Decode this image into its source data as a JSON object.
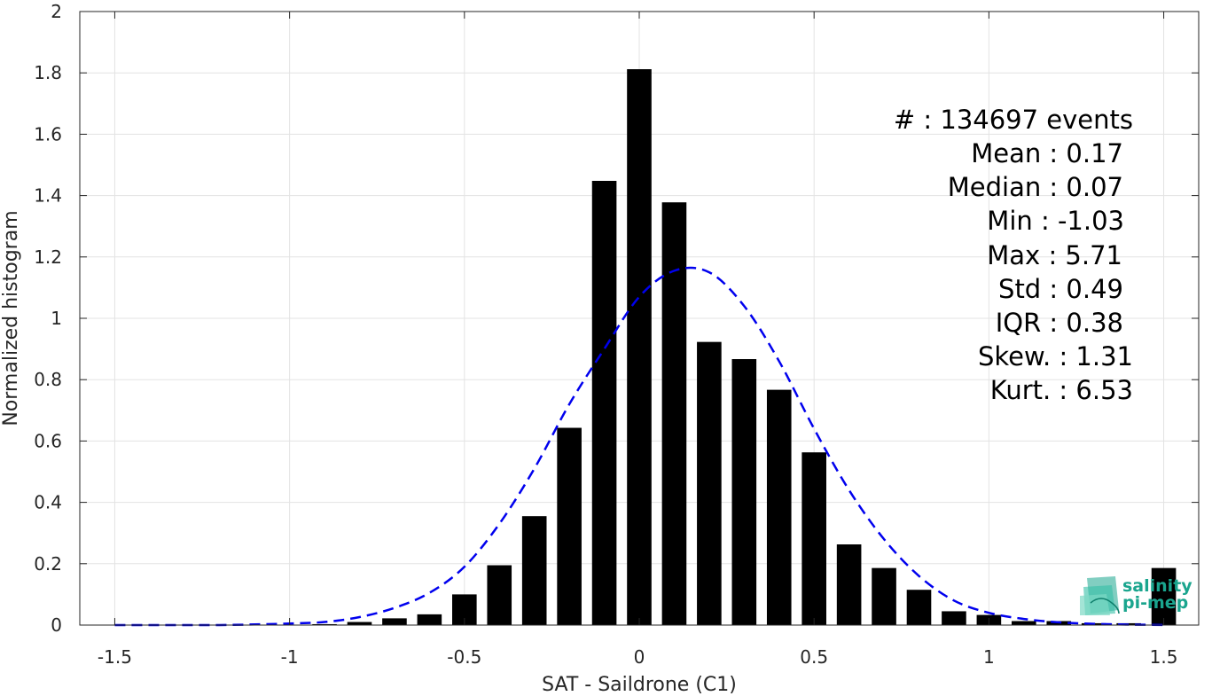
{
  "chart_data": {
    "type": "bar",
    "xlabel": "SAT - Saildrone (C1)",
    "ylabel": "Normalized histogram",
    "xlim": [
      -1.6,
      1.6
    ],
    "ylim": [
      0,
      2
    ],
    "xticks": [
      -1.5,
      -1,
      -0.5,
      0,
      0.5,
      1,
      1.5
    ],
    "xtick_labels": [
      "-1.5",
      "-1",
      "-0.5",
      "0",
      "0.5",
      "1",
      "1.5"
    ],
    "yticks": [
      0,
      0.2,
      0.4,
      0.6,
      0.8,
      1,
      1.2,
      1.4,
      1.6,
      1.8,
      2
    ],
    "ytick_labels": [
      "0",
      "0.2",
      "0.4",
      "0.6",
      "0.8",
      "1",
      "1.2",
      "1.4",
      "1.6",
      "1.8",
      "2"
    ],
    "grid": true,
    "bar_width": 0.07,
    "bars": {
      "x": [
        -1.5,
        -1.4,
        -1.3,
        -1.2,
        -1.1,
        -1.0,
        -0.9,
        -0.8,
        -0.7,
        -0.6,
        -0.5,
        -0.4,
        -0.3,
        -0.2,
        -0.1,
        0.0,
        0.1,
        0.2,
        0.3,
        0.4,
        0.5,
        0.6,
        0.7,
        0.8,
        0.9,
        1.0,
        1.1,
        1.2,
        1.3,
        1.4,
        1.5
      ],
      "values": [
        0,
        0,
        0,
        0,
        0,
        0,
        0.003,
        0.01,
        0.022,
        0.035,
        0.1,
        0.195,
        0.355,
        0.643,
        1.448,
        1.812,
        1.378,
        0.923,
        0.867,
        0.767,
        0.563,
        0.263,
        0.186,
        0.115,
        0.045,
        0.033,
        0.013,
        0.013,
        0.006,
        0.006,
        0.186
      ],
      "color": "#000000"
    },
    "fit_curve": {
      "style": "dashed",
      "color": "#0000ee",
      "x": [
        -1.5,
        -1.4,
        -1.3,
        -1.2,
        -1.1,
        -1.0,
        -0.9,
        -0.8,
        -0.7,
        -0.6,
        -0.5,
        -0.4,
        -0.3,
        -0.2,
        -0.1,
        0.0,
        0.1,
        0.2,
        0.3,
        0.4,
        0.5,
        0.6,
        0.7,
        0.8,
        0.9,
        1.0,
        1.1,
        1.2,
        1.3,
        1.4,
        1.5
      ],
      "values": [
        0.0,
        0.0,
        0.0,
        0.0,
        0.002,
        0.005,
        0.01,
        0.026,
        0.056,
        0.105,
        0.19,
        0.33,
        0.51,
        0.72,
        0.9,
        1.07,
        1.155,
        1.15,
        1.04,
        0.86,
        0.64,
        0.44,
        0.28,
        0.16,
        0.08,
        0.04,
        0.02,
        0.009,
        0.004,
        0.0015,
        0.0005
      ]
    },
    "stats_lines": [
      "#  : 134697 events",
      "Mean : 0.17",
      "Median : 0.07",
      "Min : -1.03",
      "Max : 5.71",
      "Std : 0.49",
      "IQR : 0.38",
      "Skew. : 1.31",
      "Kurt. : 6.53"
    ]
  },
  "logo": {
    "line1": "salinity",
    "line2": "pi-mep",
    "color": "#1aa58e"
  }
}
